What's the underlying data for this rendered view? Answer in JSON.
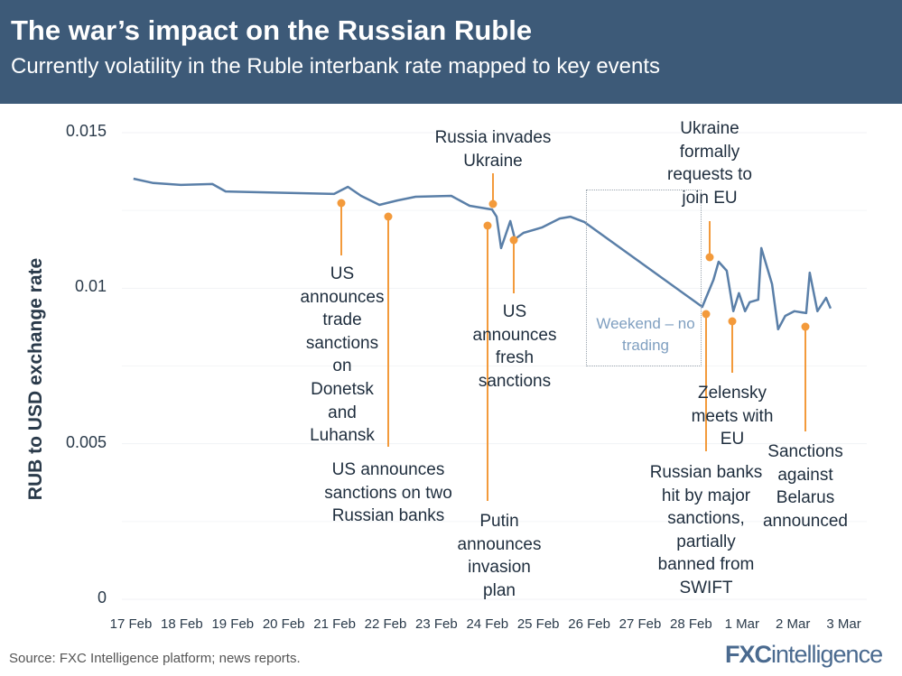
{
  "header": {
    "title": "The war’s impact on the Russian Ruble",
    "subtitle": "Currently volatility in the Ruble interbank rate mapped to key events"
  },
  "chart_data": {
    "type": "line",
    "title": "The war’s impact on the Russian Ruble",
    "ylabel": "RUB to USD exchange rate",
    "xlabel": "",
    "ylim": [
      0,
      0.015
    ],
    "yticks": [
      "0",
      "0.005",
      "0.01",
      "0.015"
    ],
    "ytick_values": [
      0,
      0.005,
      0.01,
      0.015
    ],
    "xticks": [
      "17 Feb",
      "18 Feb",
      "19 Feb",
      "20 Feb",
      "21 Feb",
      "22 Feb",
      "23 Feb",
      "24 Feb",
      "25 Feb",
      "26 Feb",
      "27 Feb",
      "28 Feb",
      "1 Mar",
      "2 Mar",
      "3 Mar"
    ],
    "x_unit": "days since 17 Feb",
    "series": [
      {
        "name": "RUB/USD",
        "color": "#5a7fa8",
        "x": [
          0.05,
          0.44,
          0.98,
          1.6,
          1.86,
          3.99,
          4.26,
          4.52,
          4.88,
          5.23,
          5.59,
          6.29,
          6.65,
          7.09,
          7.18,
          7.27,
          7.45,
          7.54,
          7.71,
          8.07,
          8.42,
          8.63,
          8.9,
          11.22,
          11.44,
          11.54,
          11.7,
          11.83,
          11.94,
          12.06,
          12.15,
          12.32,
          12.38,
          12.59,
          12.71,
          12.85,
          13.03,
          13.26,
          13.33,
          13.48,
          13.65,
          13.74
        ],
        "y": [
          0.01352,
          0.01338,
          0.01332,
          0.01335,
          0.01311,
          0.01303,
          0.01326,
          0.01297,
          0.01268,
          0.01282,
          0.01294,
          0.01297,
          0.01265,
          0.01253,
          0.0123,
          0.01129,
          0.01216,
          0.01158,
          0.01178,
          0.01195,
          0.01224,
          0.0123,
          0.01213,
          0.0094,
          0.01027,
          0.01085,
          0.01056,
          0.00926,
          0.00984,
          0.00926,
          0.00955,
          0.00963,
          0.01129,
          0.01013,
          0.00868,
          0.00911,
          0.00926,
          0.0092,
          0.0105,
          0.00926,
          0.00969,
          0.00935
        ]
      }
    ],
    "annotations": [
      {
        "text": "US\nannounces\ntrade\nsanctions\non\nDonetsk\nand\nLuhansk"
      },
      {
        "text": "US announces\nsanctions on two\nRussian banks"
      },
      {
        "text": "Russia invades\nUkraine"
      },
      {
        "text": "Putin\nannounces\ninvasion\nplan"
      },
      {
        "text": "US\nannounces\nfresh\nsanctions"
      },
      {
        "text": "Ukraine\nformally\nrequests to\njoin EU"
      },
      {
        "text": "Russian banks\nhit by major\nsanctions,\npartially\nbanned from\nSWIFT"
      },
      {
        "text": "Zelensky\nmeets with\nEU"
      },
      {
        "text": "Sanctions\nagainst\nBelarus\nannounced"
      }
    ],
    "weekend_note": "Weekend – no\ntrading",
    "annotation_color": "#f39a3b",
    "grid": true
  },
  "footer": {
    "source": "Source: FXC Intelligence platform; news reports.",
    "logo_a": "FXC",
    "logo_b": "intelligence"
  }
}
